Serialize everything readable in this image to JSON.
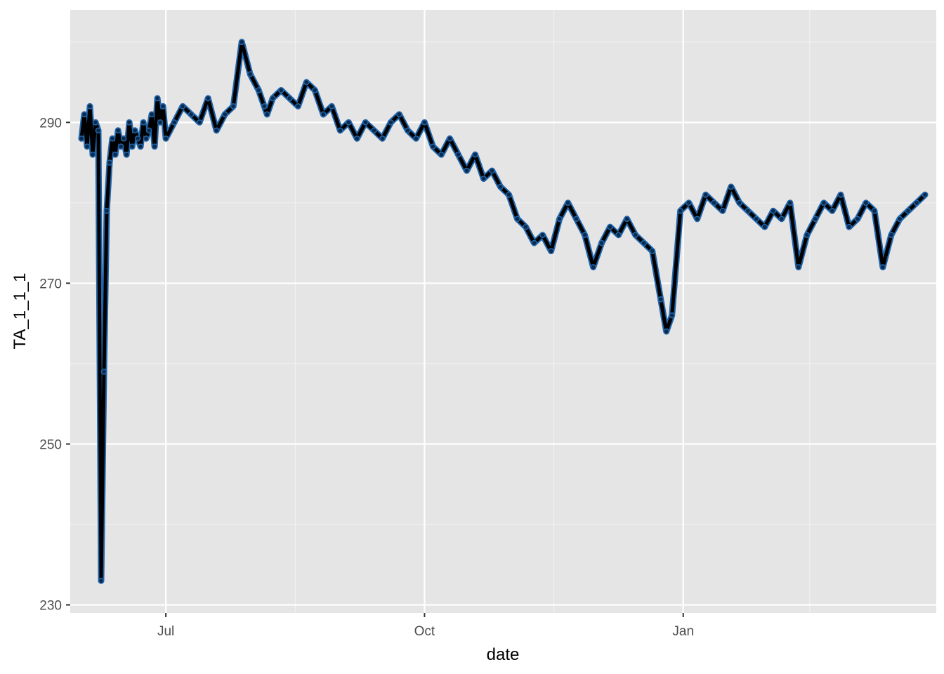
{
  "chart_data": {
    "type": "line",
    "title": "",
    "xlabel": "date",
    "ylabel": "TA_1_1_1",
    "x_axis_type": "date",
    "xlim": [
      "2022-05-28",
      "2023-04-01"
    ],
    "ylim": [
      229,
      304
    ],
    "x_ticks": [
      {
        "value": "2022-07-01",
        "label": "Jul"
      },
      {
        "value": "2022-10-01",
        "label": "Oct"
      },
      {
        "value": "2023-01-01",
        "label": "Jan"
      }
    ],
    "x_minor_ticks": [
      "2022-08-16",
      "2022-11-16",
      "2023-02-15"
    ],
    "y_ticks": [
      {
        "value": 230,
        "label": "230"
      },
      {
        "value": 250,
        "label": "250"
      },
      {
        "value": 270,
        "label": "270"
      },
      {
        "value": 290,
        "label": "290"
      }
    ],
    "y_minor_ticks": [
      240,
      260,
      280,
      300
    ],
    "grid": true,
    "panel_background": "#e5e5e5",
    "point_color": "#2166ac",
    "line_color": "#000000",
    "series": [
      {
        "x": [
          "2022-06-01",
          "2022-06-02",
          "2022-06-03",
          "2022-06-04",
          "2022-06-05",
          "2022-06-06",
          "2022-06-07",
          "2022-06-08",
          "2022-06-09",
          "2022-06-10",
          "2022-06-11",
          "2022-06-12",
          "2022-06-13",
          "2022-06-14",
          "2022-06-15",
          "2022-06-16",
          "2022-06-17",
          "2022-06-18",
          "2022-06-19",
          "2022-06-20",
          "2022-06-21",
          "2022-06-22",
          "2022-06-23",
          "2022-06-24",
          "2022-06-25",
          "2022-06-26",
          "2022-06-27",
          "2022-06-28",
          "2022-06-29",
          "2022-06-30",
          "2022-07-01",
          "2022-07-04",
          "2022-07-07",
          "2022-07-10",
          "2022-07-13",
          "2022-07-16",
          "2022-07-19",
          "2022-07-22",
          "2022-07-25",
          "2022-07-28",
          "2022-07-31",
          "2022-08-03",
          "2022-08-05",
          "2022-08-06",
          "2022-08-08",
          "2022-08-11",
          "2022-08-14",
          "2022-08-17",
          "2022-08-20",
          "2022-08-23",
          "2022-08-26",
          "2022-08-29",
          "2022-09-01",
          "2022-09-04",
          "2022-09-07",
          "2022-09-10",
          "2022-09-13",
          "2022-09-16",
          "2022-09-19",
          "2022-09-22",
          "2022-09-25",
          "2022-09-28",
          "2022-10-01",
          "2022-10-04",
          "2022-10-07",
          "2022-10-10",
          "2022-10-13",
          "2022-10-16",
          "2022-10-19",
          "2022-10-22",
          "2022-10-25",
          "2022-10-28",
          "2022-10-31",
          "2022-11-03",
          "2022-11-06",
          "2022-11-09",
          "2022-11-12",
          "2022-11-15",
          "2022-11-18",
          "2022-11-21",
          "2022-11-24",
          "2022-11-27",
          "2022-11-30",
          "2022-12-03",
          "2022-12-06",
          "2022-12-09",
          "2022-12-12",
          "2022-12-15",
          "2022-12-18",
          "2022-12-21",
          "2022-12-24",
          "2022-12-26",
          "2022-12-28",
          "2022-12-31",
          "2023-01-03",
          "2023-01-06",
          "2023-01-09",
          "2023-01-12",
          "2023-01-15",
          "2023-01-18",
          "2023-01-21",
          "2023-01-24",
          "2023-01-27",
          "2023-01-30",
          "2023-02-02",
          "2023-02-05",
          "2023-02-08",
          "2023-02-11",
          "2023-02-14",
          "2023-02-17",
          "2023-02-20",
          "2023-02-23",
          "2023-02-26",
          "2023-03-01",
          "2023-03-04",
          "2023-03-07",
          "2023-03-10",
          "2023-03-13",
          "2023-03-16",
          "2023-03-19",
          "2023-03-22",
          "2023-03-25",
          "2023-03-28"
        ],
        "y": [
          288,
          291,
          287,
          292,
          286,
          290,
          289,
          233,
          259,
          279,
          285,
          288,
          286,
          289,
          287,
          288,
          286,
          290,
          287,
          289,
          288,
          287,
          290,
          288,
          289,
          291,
          287,
          293,
          290,
          292,
          288,
          290,
          292,
          291,
          290,
          293,
          289,
          291,
          292,
          300,
          296,
          294,
          292,
          291,
          293,
          294,
          293,
          292,
          295,
          294,
          291,
          292,
          289,
          290,
          288,
          290,
          289,
          288,
          290,
          291,
          289,
          288,
          290,
          287,
          286,
          288,
          286,
          284,
          286,
          283,
          284,
          282,
          281,
          278,
          277,
          275,
          276,
          274,
          278,
          280,
          278,
          276,
          272,
          275,
          277,
          276,
          278,
          276,
          275,
          274,
          268,
          264,
          266,
          279,
          280,
          278,
          281,
          280,
          279,
          282,
          280,
          279,
          278,
          277,
          279,
          278,
          280,
          272,
          276,
          278,
          280,
          279,
          281,
          277,
          278,
          280,
          279,
          272,
          276,
          278,
          279,
          280,
          281
        ]
      }
    ]
  }
}
